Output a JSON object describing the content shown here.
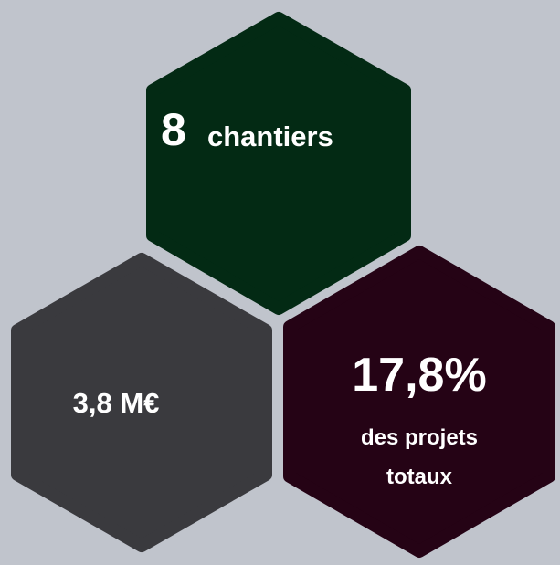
{
  "hexagons": [
    {
      "value": "8",
      "label": "chantiers"
    },
    {
      "value": "3,8 M€"
    },
    {
      "value": "17,8%",
      "label": "des projets totaux"
    }
  ]
}
